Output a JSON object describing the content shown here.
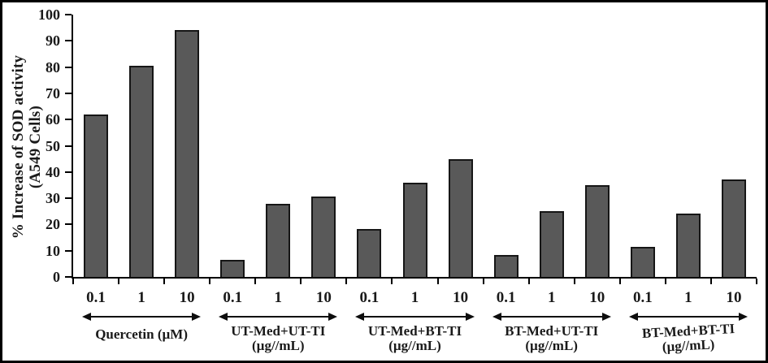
{
  "figure": {
    "background": "#ffffff",
    "frame_color": "#000000"
  },
  "chart_data": {
    "type": "bar",
    "title": "",
    "ylabel_line1": "% Increase of SOD activity",
    "ylabel_line2": "(A549 Cells)",
    "xlabel": "",
    "ylim": [
      0,
      100
    ],
    "yticks": [
      0,
      10,
      20,
      30,
      40,
      50,
      60,
      70,
      80,
      90,
      100
    ],
    "grid": "off",
    "legend": "none",
    "bar_color": "#595959",
    "bar_border_color": "#161616",
    "dose_tick_labels": [
      "0.1",
      "1",
      "10"
    ],
    "groups": [
      {
        "label": "Quercetin (µM)",
        "sublabel": "",
        "values": [
          62,
          80.5,
          94
        ]
      },
      {
        "label": "UT-Med+UT-TI",
        "sublabel": "(µg//mL)",
        "values": [
          6.5,
          28,
          30.5
        ]
      },
      {
        "label": "UT-Med+BT-TI",
        "sublabel": "(µg//mL)",
        "values": [
          18.3,
          36,
          45
        ]
      },
      {
        "label": "BT-Med+UT-TI",
        "sublabel": "(µg//mL)",
        "values": [
          8.5,
          25,
          35
        ]
      },
      {
        "label": "BT-Med+BT-TI",
        "sublabel": "(µg//mL)",
        "values": [
          11.5,
          24,
          37
        ]
      }
    ]
  }
}
